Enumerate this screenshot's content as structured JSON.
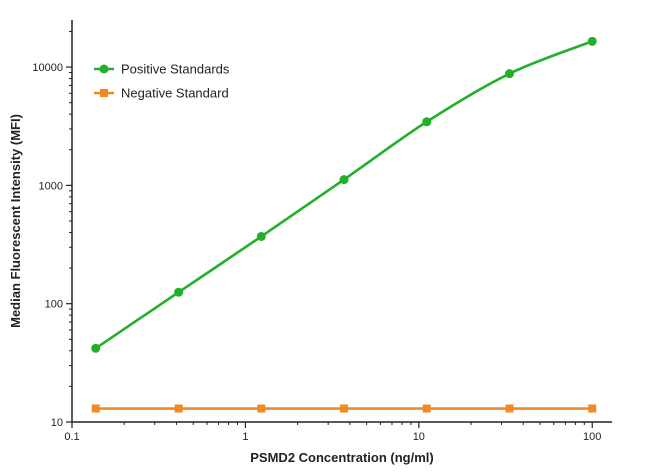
{
  "chart_data": {
    "type": "line",
    "title": "",
    "xlabel": "PSMD2 Concentration (ng/ml)",
    "ylabel": "Median Fluorescent Intensity (MFI)",
    "xscale": "log",
    "yscale": "log",
    "xlim": [
      0.1,
      130
    ],
    "ylim": [
      10,
      25000
    ],
    "x_ticks": [
      {
        "value": 0.1,
        "label": "0.1"
      },
      {
        "value": 1,
        "label": "1"
      },
      {
        "value": 10,
        "label": "10"
      },
      {
        "value": 100,
        "label": "100"
      }
    ],
    "y_ticks": [
      {
        "value": 10,
        "label": "10"
      },
      {
        "value": 100,
        "label": "100"
      },
      {
        "value": 1000,
        "label": "1000"
      },
      {
        "value": 10000,
        "label": "10000"
      }
    ],
    "grid": false,
    "legend_position": "top-left",
    "series": [
      {
        "name": "Positive Standards",
        "color": "#22b02a",
        "marker": "circle",
        "x": [
          0.137,
          0.412,
          1.235,
          3.704,
          11.11,
          33.33,
          100
        ],
        "y": [
          42,
          125,
          370,
          1120,
          3450,
          8800,
          16500
        ]
      },
      {
        "name": "Negative Standard",
        "color": "#f08a24",
        "marker": "square",
        "x": [
          0.137,
          0.412,
          1.235,
          3.704,
          11.11,
          33.33,
          100
        ],
        "y": [
          13,
          13,
          13,
          13,
          13,
          13,
          13
        ]
      }
    ]
  }
}
